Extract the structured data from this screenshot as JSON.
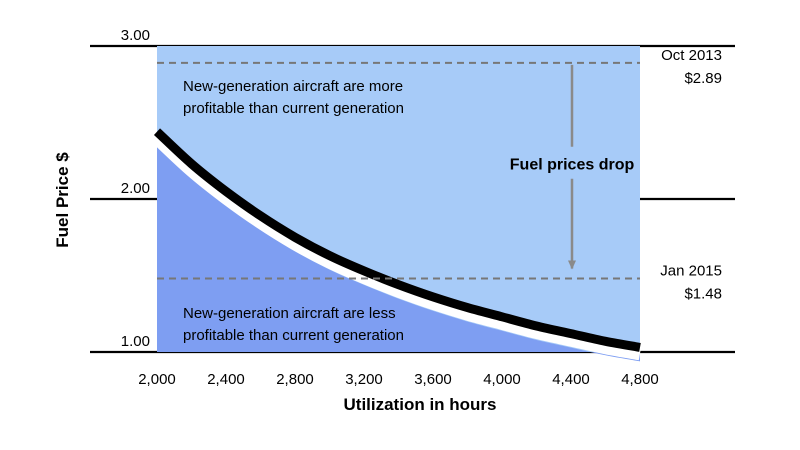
{
  "chart_data": {
    "type": "area",
    "xlabel": "Utilization in hours",
    "ylabel": "Fuel Price $",
    "xlim": [
      2000,
      4800
    ],
    "ylim": [
      1.0,
      3.0
    ],
    "x_ticks": [
      "2,000",
      "2,400",
      "2,800",
      "3,200",
      "3,600",
      "4,000",
      "4,400",
      "4,800"
    ],
    "x_tick_values": [
      2000,
      2400,
      2800,
      3200,
      3600,
      4000,
      4400,
      4800
    ],
    "y_ticks": [
      "3.00",
      "2.00",
      "1.00"
    ],
    "y_tick_values": [
      3.0,
      2.0,
      1.0
    ],
    "grid": "horizontal",
    "breakeven_curve": {
      "x": [
        2000,
        2200,
        2400,
        2600,
        2800,
        3000,
        3200,
        3400,
        3600,
        3800,
        4000,
        4200,
        4400,
        4600,
        4800
      ],
      "y": [
        2.44,
        2.23,
        2.05,
        1.89,
        1.75,
        1.63,
        1.53,
        1.44,
        1.36,
        1.29,
        1.23,
        1.17,
        1.12,
        1.07,
        1.03
      ]
    },
    "regions": [
      {
        "text": [
          "New-generation aircraft are more",
          "profitable than current generation"
        ],
        "color": "#a7cbf8"
      },
      {
        "text": [
          "New-generation aircraft are less",
          "profitable than current generation"
        ],
        "color": "#7e9ef2"
      }
    ],
    "reference_lines": [
      {
        "label": "Oct 2013",
        "value_label": "$2.89",
        "y": 2.89
      },
      {
        "label": "Jan 2015",
        "value_label": "$1.48",
        "y": 1.48
      }
    ],
    "arrow": {
      "label": "Fuel prices drop",
      "x": 4400,
      "from": 2.89,
      "to": 1.48
    },
    "colors": {
      "upper": "#a7cbf8",
      "lower": "#7e9ef2",
      "curve": "#000000",
      "arrow": "#8a8a8a",
      "dashed": "#777777"
    }
  }
}
